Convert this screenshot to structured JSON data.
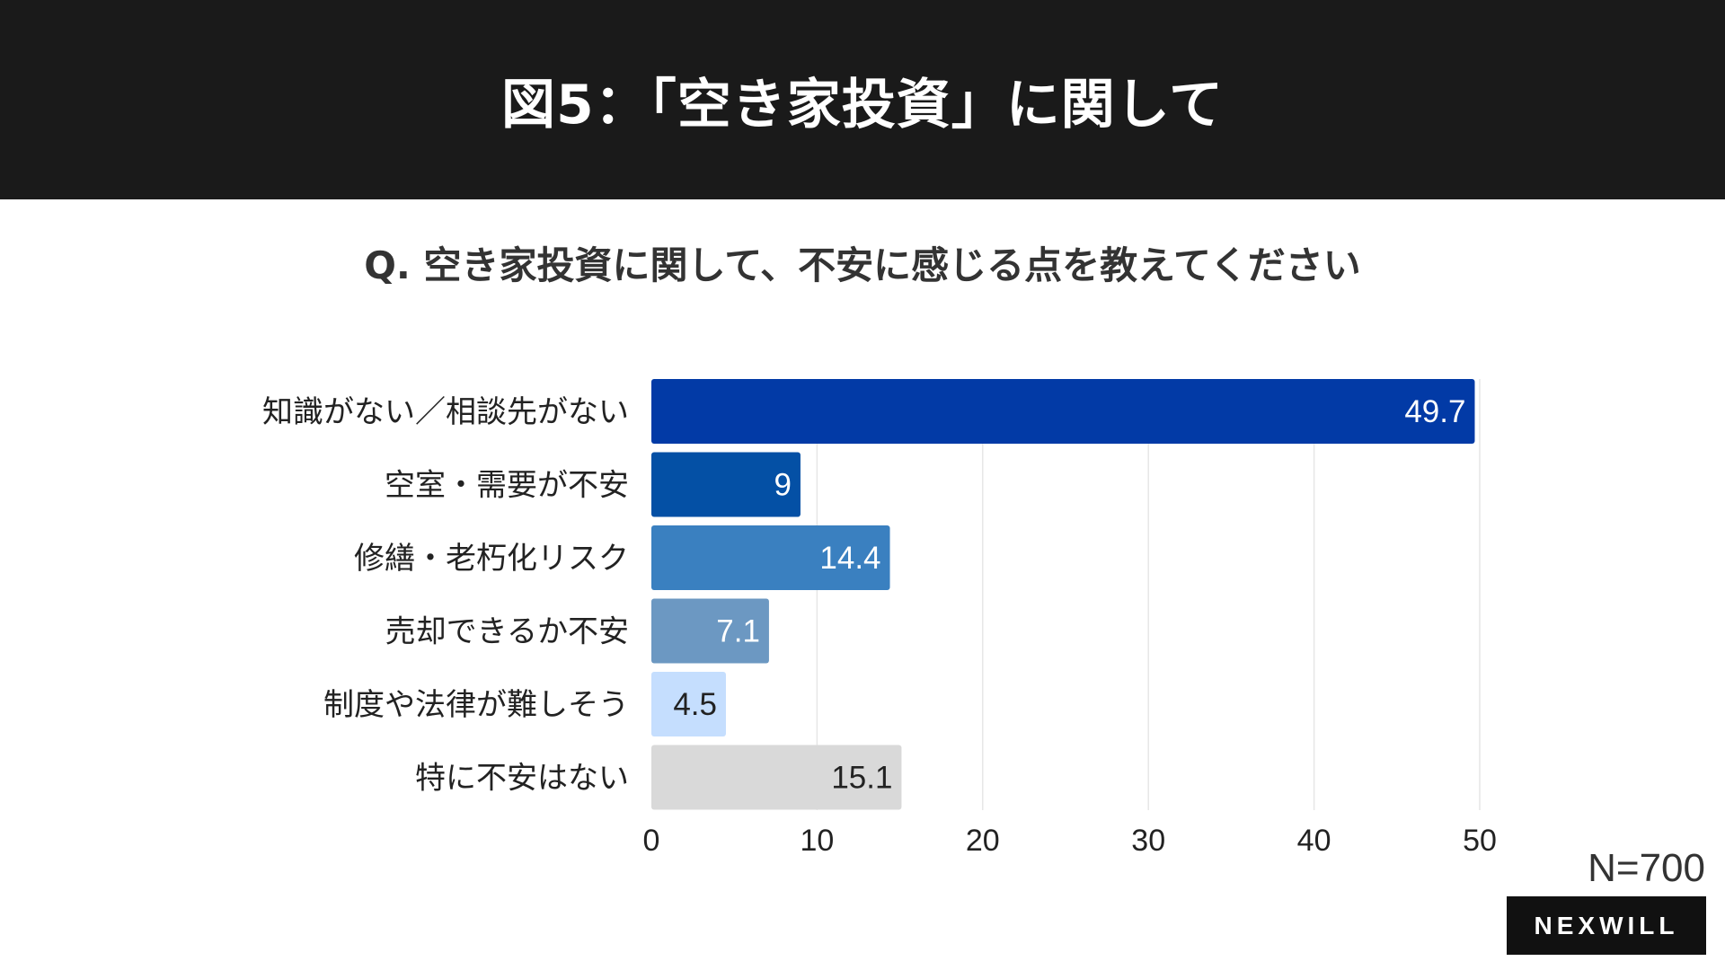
{
  "header": {
    "title": "図5：「空き家投資」に関して"
  },
  "question": "Q. 空き家投資に関して、不安に感じる点を教えてください",
  "sample_size": "N=700",
  "logo_text": "NEXWILL",
  "chart_data": {
    "type": "bar",
    "orientation": "horizontal",
    "categories": [
      "知識がない／相談先がない",
      "空室・需要が不安",
      "修繕・老朽化リスク",
      "売却できるか不安",
      "制度や法律が難しそう",
      "特に不安はない"
    ],
    "values": [
      49.7,
      9,
      14.4,
      7.1,
      4.5,
      15.1
    ],
    "value_labels": [
      "49.7",
      "9",
      "14.4",
      "7.1",
      "4.5",
      "15.1"
    ],
    "colors": [
      "#023aa6",
      "#0450a5",
      "#3a80c0",
      "#6c98c2",
      "#c5defe",
      "#d9d9d9"
    ],
    "label_colors": [
      "#ffffff",
      "#ffffff",
      "#ffffff",
      "#ffffff",
      "#222222",
      "#222222"
    ],
    "xlim": [
      0,
      50
    ],
    "xticks": [
      "0",
      "10",
      "20",
      "30",
      "40",
      "50"
    ],
    "grid": true,
    "title": "",
    "xlabel": "",
    "ylabel": ""
  }
}
